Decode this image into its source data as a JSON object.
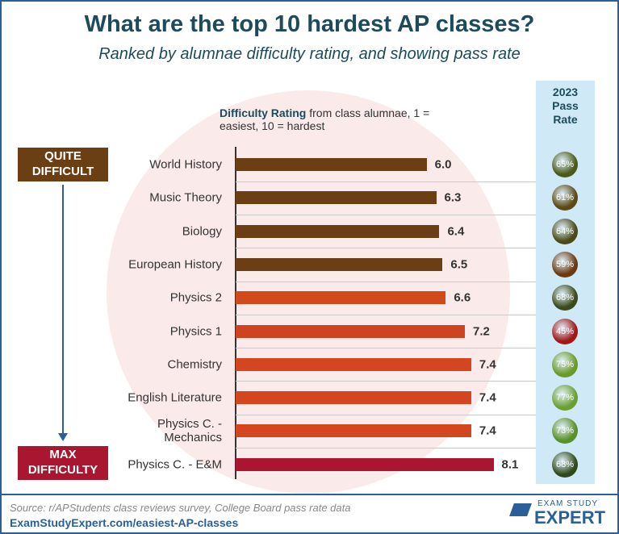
{
  "chart_data": {
    "type": "bar",
    "orientation": "horizontal",
    "title": "What are the top 10 hardest AP classes?",
    "subtitle": "Ranked by alumnae difficulty rating, and showing pass rate",
    "x_label_bold": "Difficulty Rating",
    "x_label": "from class alumnae, 1 = easiest, 10 = hardest",
    "categories": [
      "World History",
      "Music Theory",
      "Biology",
      "European History",
      "Physics 2",
      "Physics 1",
      "Chemistry",
      "English Literature",
      "Physics C. - Mechanics",
      "Physics C. - E&M"
    ],
    "xlim": [
      0,
      9
    ],
    "series": [
      {
        "values": [
          6.0,
          6.3,
          6.4,
          6.5,
          6.6,
          7.2,
          7.4,
          7.4,
          7.4,
          8.1
        ],
        "value_labels": [
          "6.0",
          "6.3",
          "6.4",
          "6.5",
          "6.6",
          "7.2",
          "7.4",
          "7.4",
          "7.4",
          "8.1"
        ],
        "colors": [
          "#6b3e14",
          "#6b3e14",
          "#6b3e14",
          "#6b3e14",
          "#d24a1c",
          "#cf4420",
          "#d4461f",
          "#d4461f",
          "#d4461f",
          "#a8172f"
        ]
      },
      {
        "name": "2023 Pass Rate",
        "values": [
          65,
          61,
          64,
          59,
          68,
          45,
          75,
          77,
          73,
          68
        ],
        "value_labels": [
          "65%",
          "61%",
          "64%",
          "59%",
          "68%",
          "45%",
          "75%",
          "77%",
          "73%",
          "68%"
        ],
        "colors": [
          "#4a5a1a",
          "#5a4a15",
          "#4a4a18",
          "#6b3a10",
          "#3a4a1a",
          "#a01818",
          "#6a9a2a",
          "#6aa030",
          "#5a9028",
          "#2f4a1a"
        ]
      }
    ],
    "levels": {
      "top": "QUITE DIFFICULT",
      "bottom": "MAX DIFFICULTY"
    },
    "source": "Source: r/APStudents class reviews survey, College Board pass rate data",
    "url": "ExamStudyExpert.com/easiest-AP-classes",
    "logo_top": "EXAM STUDY",
    "logo_bottom": "EXPERT"
  }
}
